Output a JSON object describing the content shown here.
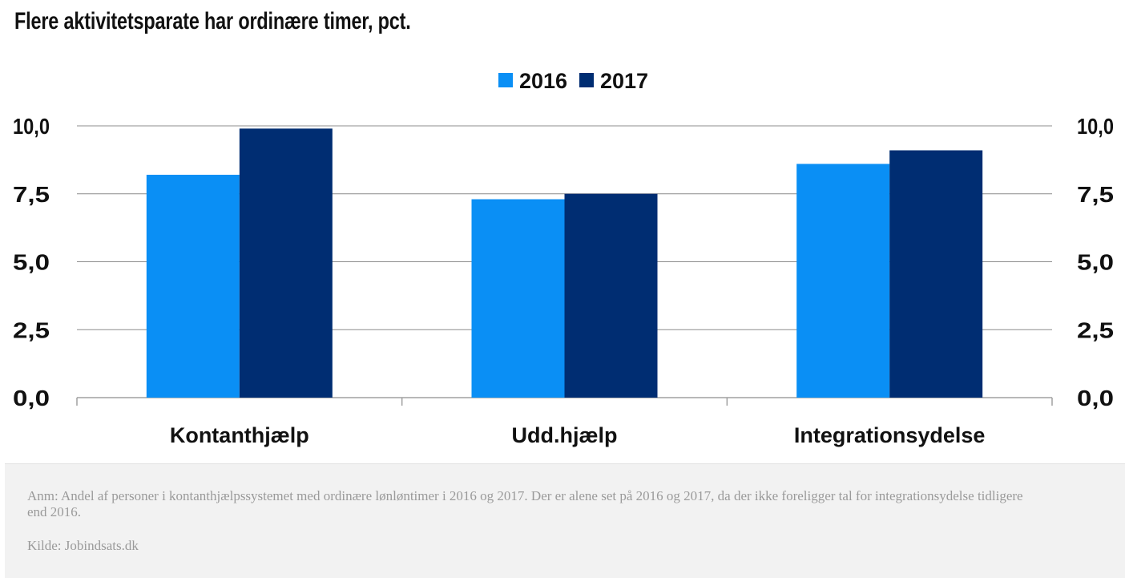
{
  "title": "Flere aktivitetsparate har ordinære timer, pct.",
  "colors": {
    "series_2016": "#0a8ff5",
    "series_2017": "#002d72",
    "grid": "#8c8c8c",
    "axis": "#a0a0a0"
  },
  "chart_data": {
    "type": "bar",
    "title": "Flere aktivitetsparate har ordinære timer, pct.",
    "categories": [
      "Kontanthjælp",
      "Udd.hjælp",
      "Integrationsydelse"
    ],
    "series": [
      {
        "name": "2016",
        "values": [
          8.2,
          7.3,
          8.6
        ]
      },
      {
        "name": "2017",
        "values": [
          9.9,
          7.5,
          9.1
        ]
      }
    ],
    "ylim": [
      0,
      10
    ],
    "yticks": [
      "0,0",
      "2,5",
      "5,0",
      "7,5",
      "10,0"
    ],
    "ytick_values": [
      0,
      2.5,
      5,
      7.5,
      10
    ],
    "secondary_y_axis": true,
    "grid": true,
    "legend": "top-center",
    "xlabel": "",
    "ylabel": ""
  },
  "footer": {
    "note": "Anm: Andel af personer i kontanthjælpssystemet med ordinære lønløntimer i 2016 og 2017. Der er alene set på 2016 og 2017, da der ikke foreligger tal for integrationsydelse tidligere end 2016.",
    "source": "Kilde: Jobindsats.dk"
  }
}
